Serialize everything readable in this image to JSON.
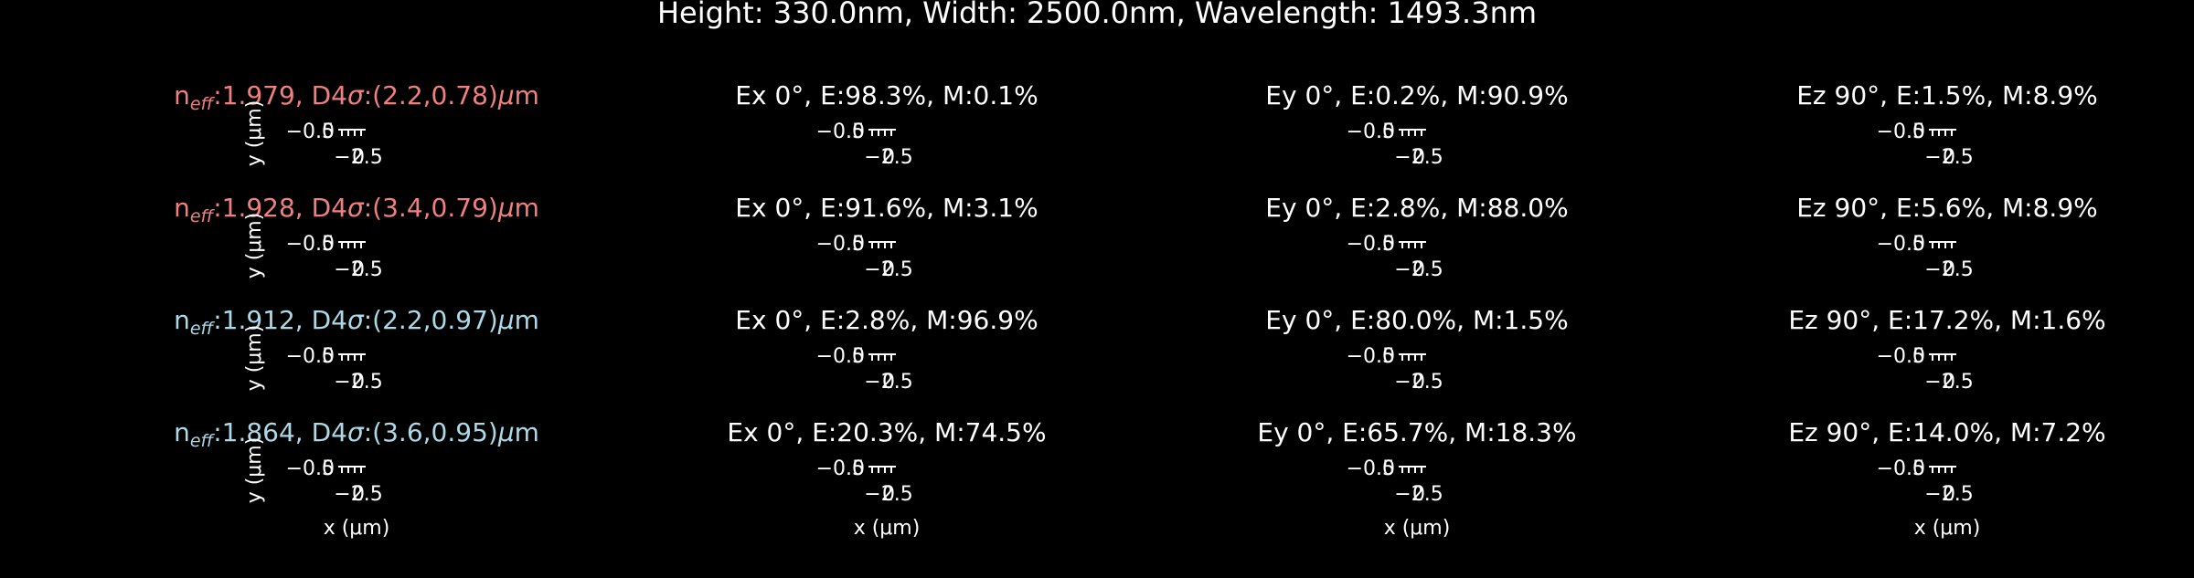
{
  "figure": {
    "title": "Height: 330.0nm, Width: 2500.0nm, Wavelength: 1493.3nm",
    "background": "#000000",
    "text_color": "#ffffff",
    "mode_label_colors": [
      "#f08080",
      "#f08080",
      "#add8e6",
      "#add8e6"
    ]
  },
  "chart_data": {
    "type": "mode-field-grid",
    "title": "Height: 330.0nm, Width: 2500.0nm, Wavelength: 1493.3nm",
    "xlabel": "x (μm)",
    "ylabel": "y (μm)",
    "x_ticks": [
      "−2.5",
      "0"
    ],
    "y_ticks": [
      "−0.5",
      "0"
    ],
    "rows": [
      {
        "n_eff": "1.979",
        "d4sigma": "(2.2,0.78)",
        "label_color": "#f08080",
        "panels": [
          {
            "comp": "Ex",
            "angle": "0",
            "E": "98.3",
            "M": "0.1"
          },
          {
            "comp": "Ey",
            "angle": "0",
            "E": "0.2",
            "M": "90.9"
          },
          {
            "comp": "Ez",
            "angle": "90",
            "E": "1.5",
            "M": "8.9"
          }
        ]
      },
      {
        "n_eff": "1.928",
        "d4sigma": "(3.4,0.79)",
        "label_color": "#f08080",
        "panels": [
          {
            "comp": "Ex",
            "angle": "0",
            "E": "91.6",
            "M": "3.1"
          },
          {
            "comp": "Ey",
            "angle": "0",
            "E": "2.8",
            "M": "88.0"
          },
          {
            "comp": "Ez",
            "angle": "90",
            "E": "5.6",
            "M": "8.9"
          }
        ]
      },
      {
        "n_eff": "1.912",
        "d4sigma": "(2.2,0.97)",
        "label_color": "#add8e6",
        "panels": [
          {
            "comp": "Ex",
            "angle": "0",
            "E": "2.8",
            "M": "96.9"
          },
          {
            "comp": "Ey",
            "angle": "0",
            "E": "80.0",
            "M": "1.5"
          },
          {
            "comp": "Ez",
            "angle": "90",
            "E": "17.2",
            "M": "1.6"
          }
        ]
      },
      {
        "n_eff": "1.864",
        "d4sigma": "(3.6,0.95)",
        "label_color": "#add8e6",
        "panels": [
          {
            "comp": "Ex",
            "angle": "0",
            "E": "20.3",
            "M": "74.5"
          },
          {
            "comp": "Ey",
            "angle": "0",
            "E": "65.7",
            "M": "18.3"
          },
          {
            "comp": "Ez",
            "angle": "90",
            "E": "14.0",
            "M": "7.2"
          }
        ]
      }
    ]
  }
}
